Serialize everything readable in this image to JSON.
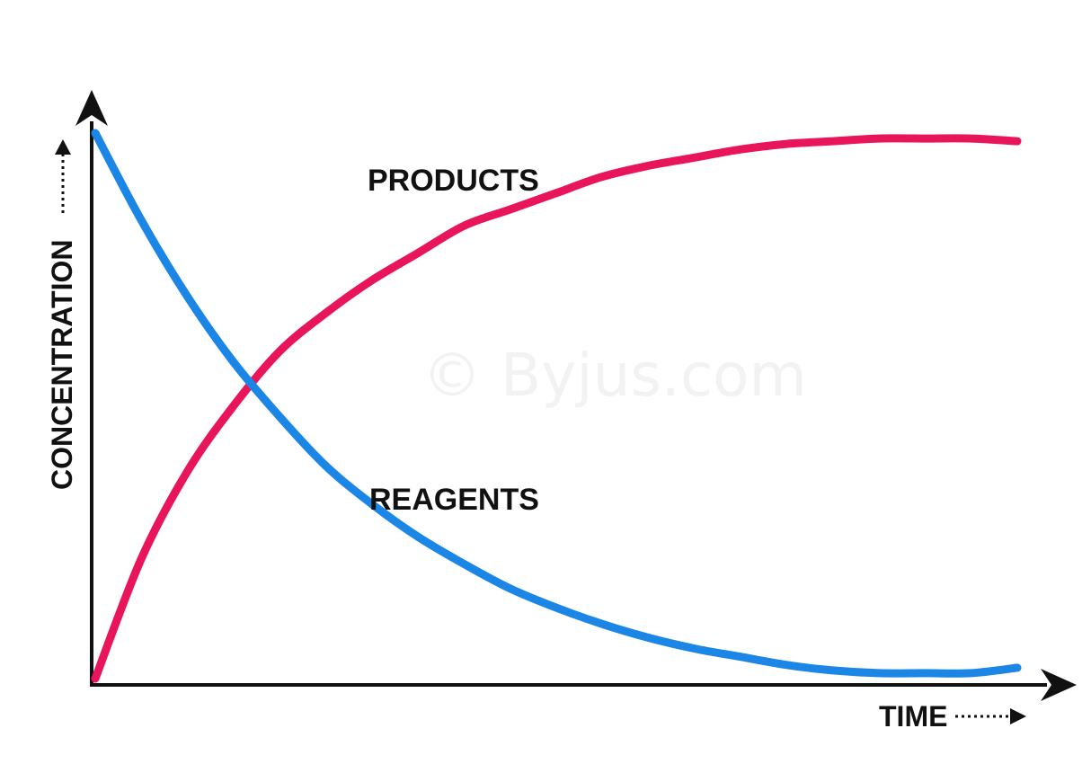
{
  "watermark": "© Byjus.com",
  "colors": {
    "products": "#e8155a",
    "reagents": "#1c86e6",
    "axis": "#111111"
  },
  "chart_data": {
    "type": "line",
    "title": "",
    "xlabel": "TIME",
    "ylabel": "CONCENTRATION",
    "xlim": [
      0,
      1
    ],
    "ylim": [
      0,
      1
    ],
    "grid": false,
    "legend": "inline labels",
    "series": [
      {
        "name": "PRODUCTS",
        "color": "#e8155a",
        "x": [
          0,
          0.05,
          0.1,
          0.15,
          0.2,
          0.25,
          0.3,
          0.35,
          0.4,
          0.45,
          0.5,
          0.55,
          0.6,
          0.65,
          0.7,
          0.75,
          0.8,
          0.85,
          0.9,
          0.95,
          1
        ],
        "y": [
          0,
          0.22,
          0.38,
          0.5,
          0.6,
          0.67,
          0.73,
          0.78,
          0.83,
          0.86,
          0.89,
          0.92,
          0.94,
          0.955,
          0.97,
          0.98,
          0.985,
          0.99,
          0.99,
          0.99,
          0.985
        ]
      },
      {
        "name": "REAGENTS",
        "color": "#1c86e6",
        "x": [
          0,
          0.05,
          0.1,
          0.15,
          0.2,
          0.25,
          0.3,
          0.35,
          0.4,
          0.45,
          0.5,
          0.55,
          0.6,
          0.65,
          0.7,
          0.75,
          0.8,
          0.85,
          0.9,
          0.95,
          1
        ],
        "y": [
          1,
          0.84,
          0.7,
          0.58,
          0.48,
          0.39,
          0.32,
          0.26,
          0.21,
          0.165,
          0.13,
          0.1,
          0.075,
          0.055,
          0.04,
          0.025,
          0.015,
          0.01,
          0.01,
          0.01,
          0.02
        ]
      }
    ],
    "annotations": [
      {
        "text": "PRODUCTS",
        "series": "PRODUCTS"
      },
      {
        "text": "REAGENTS",
        "series": "REAGENTS"
      }
    ]
  }
}
